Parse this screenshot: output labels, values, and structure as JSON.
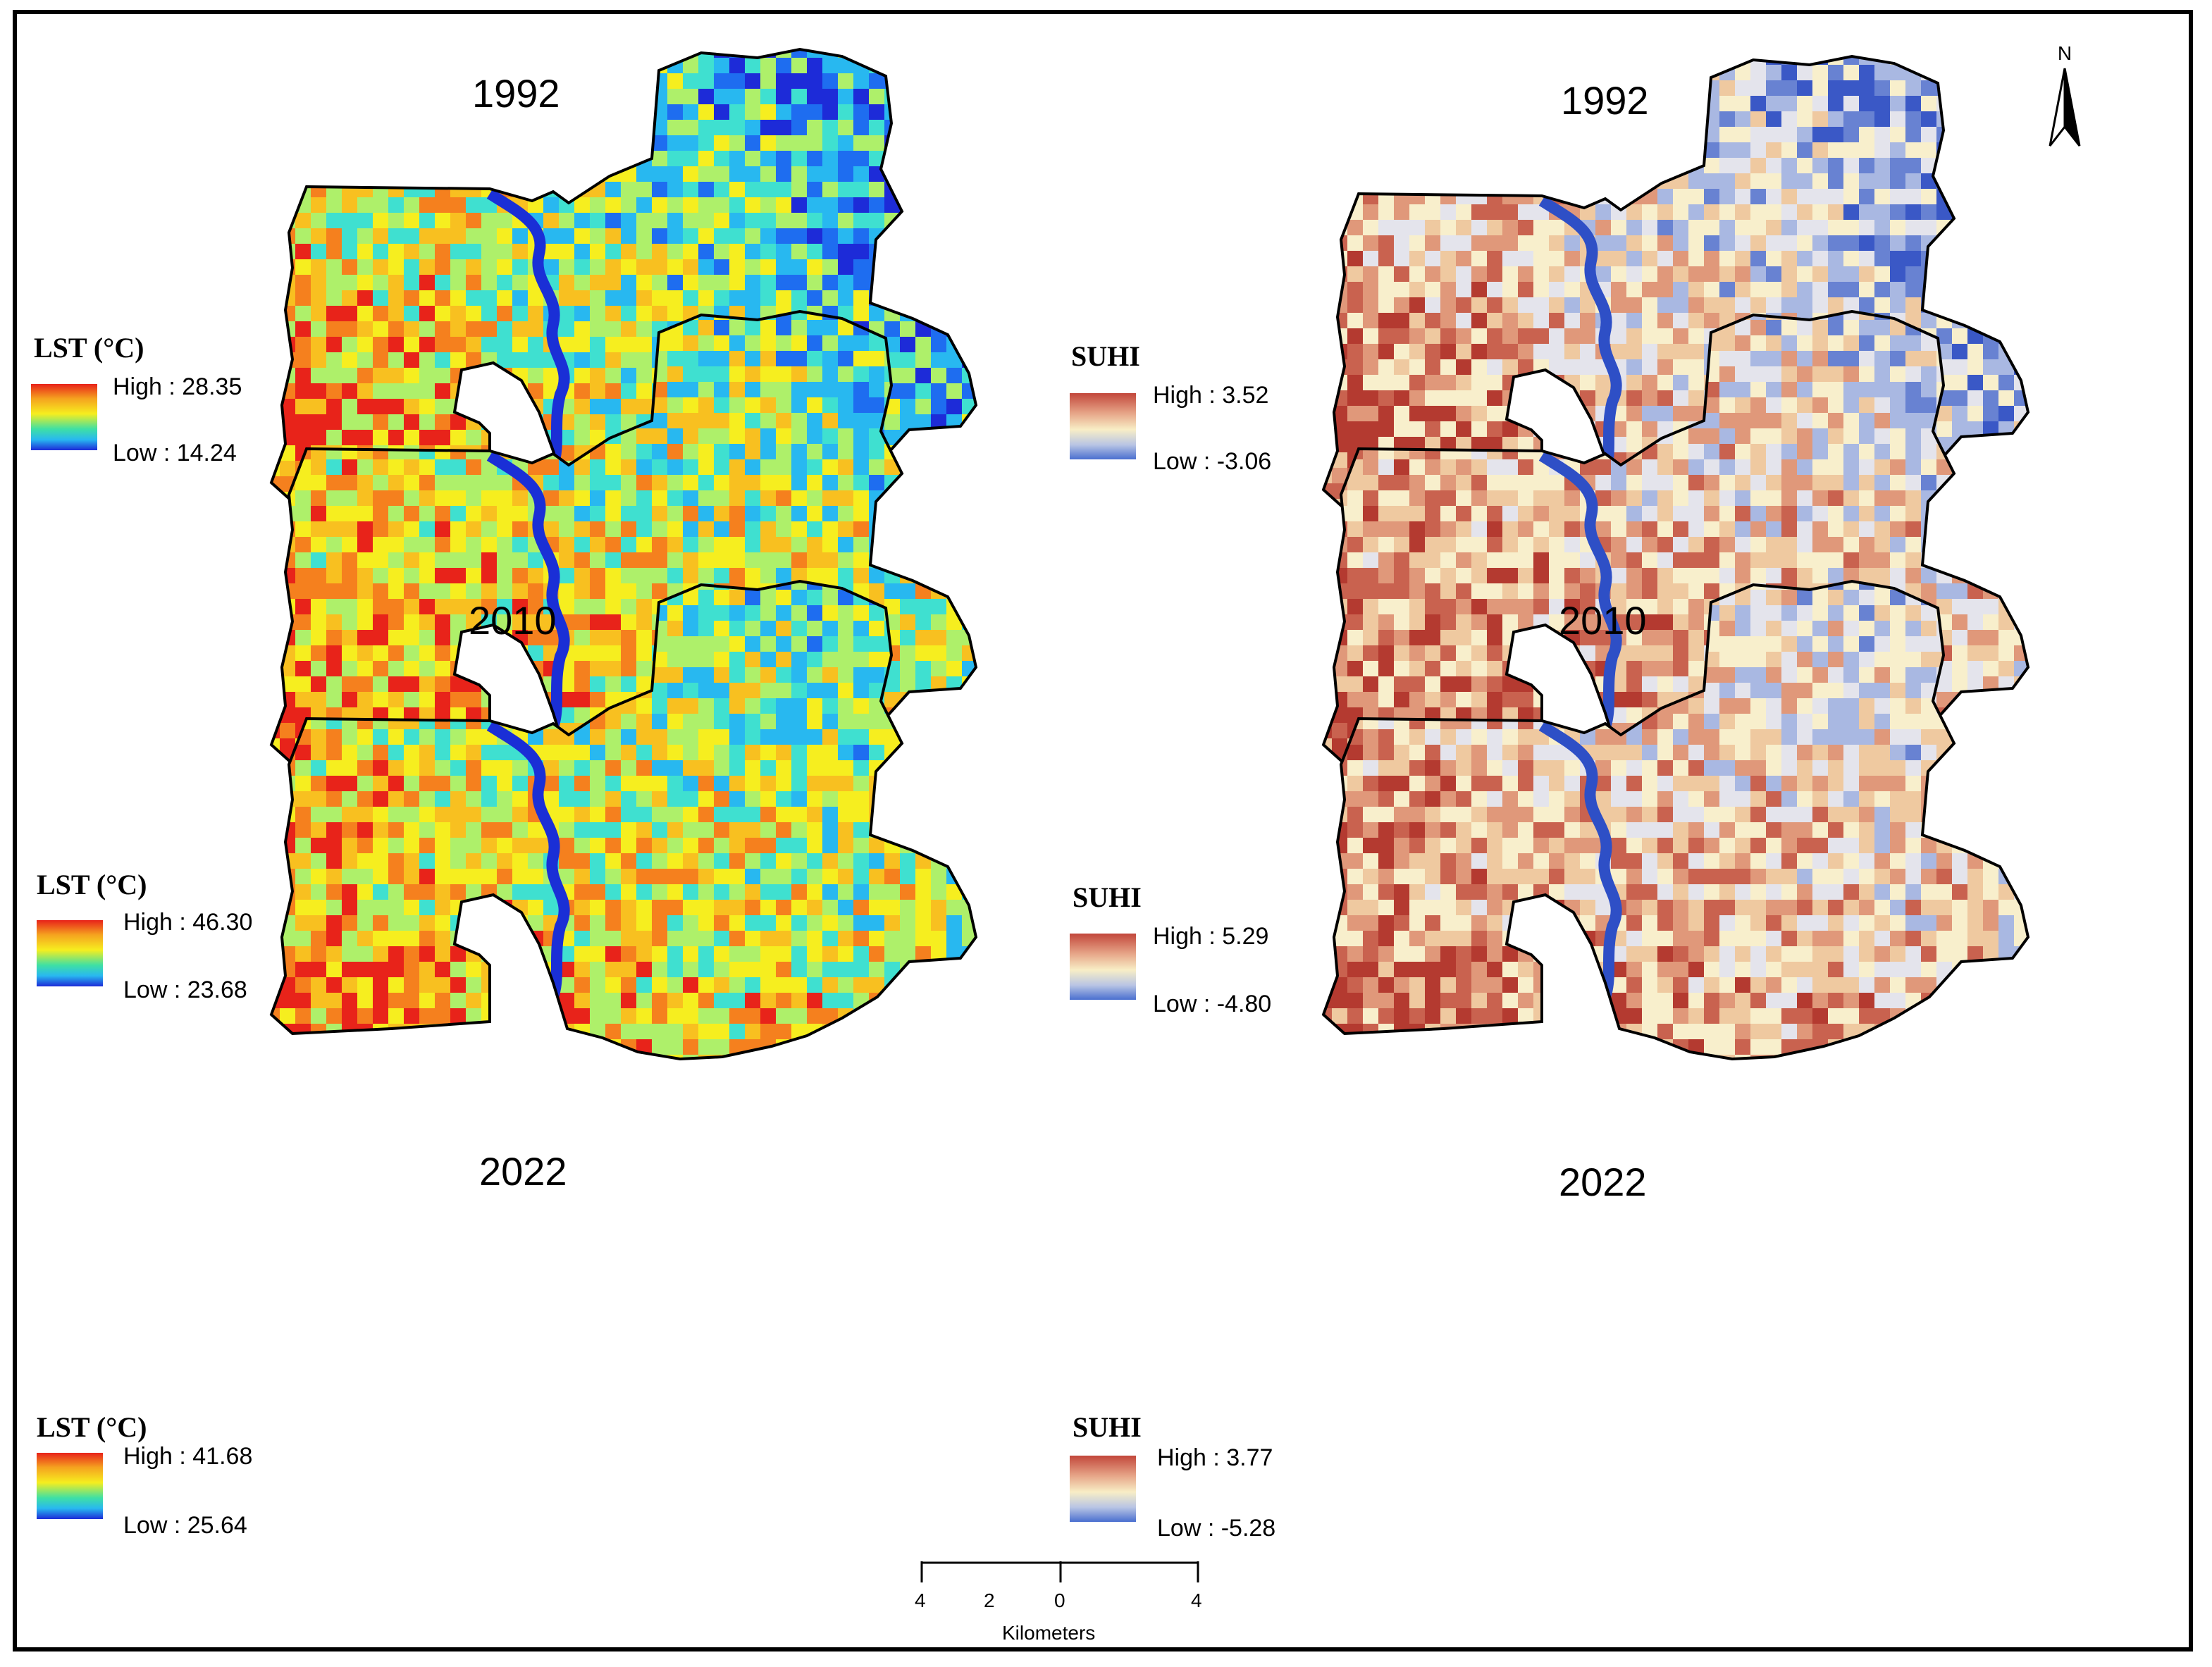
{
  "panels": [
    {
      "id": "lst-1992",
      "year": "1992",
      "legend_title": "LST (°C)",
      "high": "High : 28.35",
      "low": "Low : 14.24",
      "palette": "lst",
      "seed": 1,
      "colors": [
        "#1d2bd8",
        "#1e6df0",
        "#28b8f0",
        "#3fe0d0",
        "#aef06a",
        "#f6ee1f",
        "#f8c020",
        "#f5801e",
        "#e8231a"
      ],
      "bias": 0.47
    },
    {
      "id": "suhi-1992",
      "year": "1992",
      "legend_title": "SUHI",
      "high": "High : 3.52",
      "low": "Low : -3.06",
      "palette": "suhi",
      "seed": 1,
      "colors": [
        "#3a58c6",
        "#6882d2",
        "#a9b8e2",
        "#e4e4ec",
        "#f8efcc",
        "#efc9a0",
        "#e0987a",
        "#c9624f",
        "#b43a30"
      ],
      "bias": 0.47
    },
    {
      "id": "lst-2010",
      "year": "2010",
      "legend_title": "LST (°C)",
      "high": "High : 46.30",
      "low": "Low : 23.68",
      "palette": "lst",
      "seed": 2,
      "colors": [
        "#1d2bd8",
        "#1e6df0",
        "#28b8f0",
        "#3fe0d0",
        "#aef06a",
        "#f6ee1f",
        "#f8c020",
        "#f5801e",
        "#e8231a"
      ],
      "bias": 0.58
    },
    {
      "id": "suhi-2010",
      "year": "2010",
      "legend_title": "SUHI",
      "high": "High : 5.29",
      "low": "Low : -4.80",
      "palette": "suhi",
      "seed": 2,
      "colors": [
        "#3a58c6",
        "#6882d2",
        "#a9b8e2",
        "#e4e4ec",
        "#f8efcc",
        "#efc9a0",
        "#e0987a",
        "#c9624f",
        "#b43a30"
      ],
      "bias": 0.58
    },
    {
      "id": "lst-2022",
      "year": "2022",
      "legend_title": "LST (°C)",
      "high": "High : 41.68",
      "low": "Low : 25.64",
      "palette": "lst",
      "seed": 3,
      "colors": [
        "#1d2bd8",
        "#1e6df0",
        "#28b8f0",
        "#3fe0d0",
        "#aef06a",
        "#f6ee1f",
        "#f8c020",
        "#f5801e",
        "#e8231a"
      ],
      "bias": 0.57
    },
    {
      "id": "suhi-2022",
      "year": "2022",
      "legend_title": "SUHI",
      "high": "High : 3.77",
      "low": "Low : -5.28",
      "palette": "suhi",
      "seed": 3,
      "colors": [
        "#3a58c6",
        "#6882d2",
        "#a9b8e2",
        "#e4e4ec",
        "#f8efcc",
        "#efc9a0",
        "#e0987a",
        "#c9624f",
        "#b43a30"
      ],
      "bias": 0.57
    }
  ],
  "north_label": "N",
  "scale": {
    "unit": "Kilometers",
    "ticks": [
      "4",
      "2",
      "0",
      "4"
    ]
  },
  "colors": {
    "frame": "#000000",
    "river_lst": "#1a2fd6",
    "river_suhi": "#2e4fc6"
  }
}
